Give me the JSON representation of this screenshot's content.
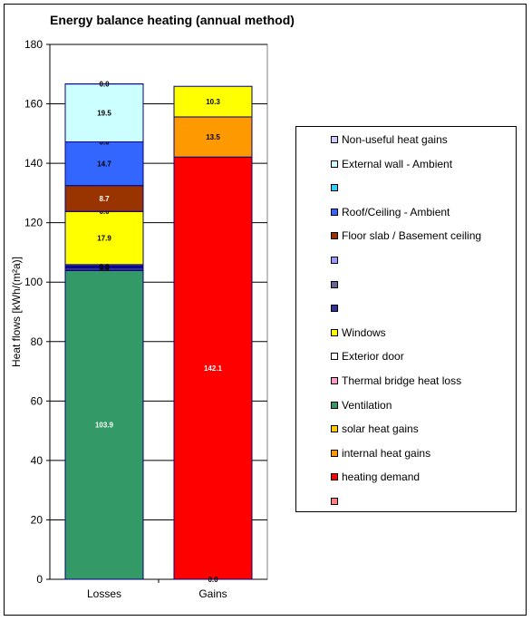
{
  "chart_data": {
    "type": "bar",
    "stacked": true,
    "title": "Energy balance heating (annual method)",
    "ylabel": "Heat flows [kWh/(m²a)]",
    "xlabel": "",
    "ylim": [
      0,
      180
    ],
    "yticks": [
      0,
      20,
      40,
      60,
      80,
      100,
      120,
      140,
      160,
      180
    ],
    "categories": [
      "Losses",
      "Gains"
    ],
    "grid": true,
    "legend_position": "right",
    "stacks": [
      {
        "category": "Losses",
        "segments": [
          {
            "value": 103.9,
            "label": "103.9",
            "color": "#339966",
            "label_color": "#ffffff"
          },
          {
            "value": 0.4,
            "label": "",
            "color": "#ff99cc",
            "label_color": "#000000"
          },
          {
            "value": 0.4,
            "label": "",
            "color": "#ffffff",
            "label_color": "#000000"
          },
          {
            "value": 0.4,
            "label": "",
            "color": "#333399",
            "label_color": "#000000"
          },
          {
            "value": 0.4,
            "label": "",
            "color": "#666699",
            "label_color": "#000000"
          },
          {
            "value": 0.4,
            "label": "",
            "color": "#9999ff",
            "label_color": "#000000"
          },
          {
            "value": 17.9,
            "label": "17.9",
            "color": "#ffff00",
            "label_color": "#000000"
          },
          {
            "value": 0.0,
            "label": "0.0",
            "color": "#993366",
            "label_color": "#000000"
          },
          {
            "value": 8.7,
            "label": "8.7",
            "color": "#993300",
            "label_color": "#ffffff"
          },
          {
            "value": 14.7,
            "label": "14.7",
            "color": "#3366ff",
            "label_color": "#000000"
          },
          {
            "value": 0.0,
            "label": "0.0",
            "color": "#33ccff",
            "label_color": "#000000"
          },
          {
            "value": 19.5,
            "label": "19.5",
            "color": "#ccffff",
            "label_color": "#000000"
          },
          {
            "value": 0.0,
            "label": "0.0",
            "color": "#ccccff",
            "label_color": "#000000"
          }
        ],
        "overlay_labels": [
          {
            "text": "0.0",
            "at": 104.6
          },
          {
            "text": "0.0",
            "at": 105.2
          }
        ]
      },
      {
        "category": "Gains",
        "segments": [
          {
            "value": 142.1,
            "label": "142.1",
            "color": "#ff0000",
            "label_color": "#ffffff"
          },
          {
            "value": 13.5,
            "label": "13.5",
            "color": "#ff9900",
            "label_color": "#000000"
          },
          {
            "value": 10.3,
            "label": "10.3",
            "color": "#ffff00",
            "label_color": "#000000"
          }
        ],
        "overlay_labels": [
          {
            "text": "0.0",
            "at": 0
          }
        ]
      }
    ],
    "legend": [
      {
        "label": "Non-useful heat gains",
        "color": "#ccccff"
      },
      {
        "label": "External wall - Ambient",
        "color": "#ccffff"
      },
      {
        "label": "",
        "color": "#33ccff"
      },
      {
        "label": "Roof/Ceiling - Ambient",
        "color": "#3366ff"
      },
      {
        "label": "Floor slab / Basement ceiling",
        "color": "#993300"
      },
      {
        "label": "",
        "color": "#9999ff"
      },
      {
        "label": "",
        "color": "#666699"
      },
      {
        "label": "",
        "color": "#333399"
      },
      {
        "label": "Windows",
        "color": "#ffff00"
      },
      {
        "label": "Exterior door",
        "color": "#ffffff"
      },
      {
        "label": "Thermal bridge heat loss",
        "color": "#ff99cc"
      },
      {
        "label": "Ventilation",
        "color": "#339966"
      },
      {
        "label": "solar heat gains",
        "color": "#ffcc00"
      },
      {
        "label": "internal heat gains",
        "color": "#ff9900"
      },
      {
        "label": "heating demand",
        "color": "#ff0000"
      },
      {
        "label": "",
        "color": "#ff8080"
      }
    ]
  }
}
